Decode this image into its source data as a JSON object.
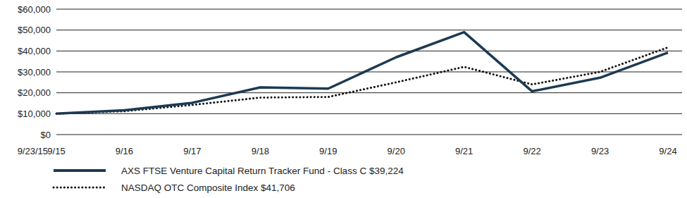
{
  "chart_data": {
    "type": "line",
    "categories": [
      "9/15",
      "9/16",
      "9/17",
      "9/18",
      "9/19",
      "9/20",
      "9/21",
      "9/22",
      "9/23",
      "9/24"
    ],
    "annotations": [
      "9/23/15"
    ],
    "series": [
      {
        "name": "AXS FTSE Venture Capital Return Tracker Fund - Class C $39,224",
        "color": "#1d3a52",
        "line_style": "solid",
        "values": [
          10000,
          11600,
          15200,
          22600,
          22000,
          37000,
          49000,
          20700,
          27200,
          39224
        ]
      },
      {
        "name": "NASDAQ OTC Composite Index $41,706",
        "color": "#111111",
        "line_style": "dotted",
        "values": [
          10000,
          11200,
          14200,
          17700,
          18000,
          25000,
          32400,
          24000,
          30000,
          41706
        ]
      }
    ],
    "ylim": [
      0,
      60000
    ],
    "yticks": [
      {
        "value": 0,
        "label": "$0"
      },
      {
        "value": 10000,
        "label": "$10,000"
      },
      {
        "value": 20000,
        "label": "$20,000"
      },
      {
        "value": 30000,
        "label": "$30,000"
      },
      {
        "value": 40000,
        "label": "$40,000"
      },
      {
        "value": 50000,
        "label": "$50,000"
      },
      {
        "value": 60000,
        "label": "$60,000"
      }
    ],
    "grid": true,
    "legend": "bottom-left"
  }
}
